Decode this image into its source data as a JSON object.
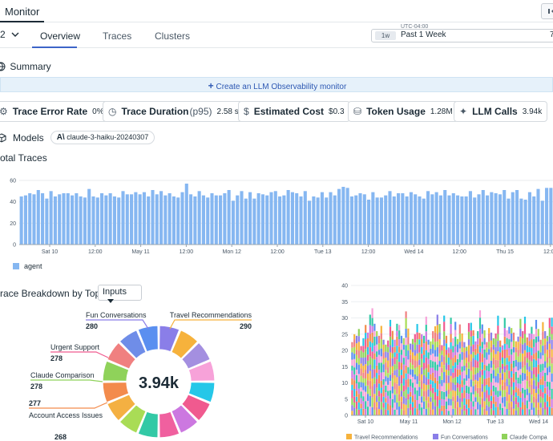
{
  "header": {
    "title": "Monitor"
  },
  "tabs": {
    "selector": "2",
    "items": [
      "Overview",
      "Traces",
      "Clusters"
    ]
  },
  "time": {
    "timezone": "UTC-04:00",
    "badge": "1w",
    "range": "Past 1 Week",
    "edge": "7"
  },
  "summary": {
    "title": "Summary",
    "create_monitor": "Create an LLM Observability monitor"
  },
  "stats": [
    {
      "label": "Trace Error Rate",
      "value": "0%",
      "icon": "error-icon"
    },
    {
      "label": "Trace Duration",
      "sub": "(p95)",
      "value": "2.58 s",
      "icon": "clock-icon"
    },
    {
      "label": "Estimated Cost",
      "value": "$0.3",
      "icon": "dollar-icon"
    },
    {
      "label": "Token Usage",
      "value": "1.28M",
      "icon": "database-icon"
    },
    {
      "label": "LLM Calls",
      "value": "3.94k",
      "icon": "sparkle-icon"
    }
  ],
  "models": {
    "label": "Models",
    "chip": "claude-3-haiku-20240307"
  },
  "total_traces": {
    "title": "otal Traces",
    "legend": "agent"
  },
  "breakdown": {
    "title": "race Breakdown by Topic",
    "select": "Inputs",
    "center": "3.94k"
  },
  "colors": {
    "bar": "#86b7f1",
    "accent": "#3c64c8",
    "link": "#2d58b3"
  },
  "chart_data": [
    {
      "type": "bar",
      "title": "",
      "ylim": [
        0,
        60
      ],
      "yticks": [
        0,
        20,
        40,
        60
      ],
      "xtick_labels": [
        "Sat 10",
        "12:00",
        "May 11",
        "12:00",
        "Mon 12",
        "12:00",
        "Tue 13",
        "12:00",
        "Wed 14",
        "12:00",
        "Thu 15",
        "12:00"
      ],
      "series": [
        {
          "name": "agent",
          "values": [
            45,
            46,
            48,
            47,
            51,
            48,
            43,
            50,
            45,
            47,
            48,
            48,
            46,
            48,
            45,
            44,
            52,
            45,
            44,
            48,
            46,
            48,
            45,
            44,
            50,
            47,
            47,
            49,
            47,
            49,
            45,
            51,
            47,
            50,
            46,
            48,
            45,
            44,
            49,
            57,
            47,
            45,
            50,
            46,
            44,
            48,
            46,
            46,
            48,
            51,
            41,
            46,
            50,
            43,
            49,
            43,
            48,
            47,
            46,
            49,
            50,
            45,
            46,
            51,
            49,
            48,
            45,
            50,
            41,
            45,
            44,
            49,
            44,
            49,
            46,
            52,
            54,
            53,
            45,
            46,
            48,
            47,
            42,
            49,
            44,
            44,
            46,
            50,
            45,
            48,
            48,
            45,
            49,
            47,
            45,
            43,
            50,
            47,
            49,
            46,
            51,
            46,
            48,
            46,
            45,
            45,
            50,
            44,
            47,
            51,
            46,
            49,
            48,
            47,
            51,
            43,
            49,
            51,
            43,
            42,
            49,
            45,
            52,
            41,
            53,
            53
          ]
        }
      ]
    },
    {
      "type": "pie",
      "title": "",
      "center_total": "3.94k",
      "categories": [
        "Fun Conversations",
        "Travel Recommendations",
        "Urgent Support",
        "Claude Comparison",
        "Account Access Issues",
        ""
      ],
      "values": [
        280,
        290,
        278,
        278,
        277,
        268
      ]
    },
    {
      "type": "bar",
      "title": "",
      "ylim": [
        0,
        40
      ],
      "yticks": [
        0,
        5,
        10,
        15,
        20,
        25,
        30,
        35,
        40
      ],
      "xtick_labels": [
        "Sat 10",
        "May 11",
        "Mon 12",
        "Tue 13",
        "Wed 14"
      ],
      "legend": [
        "Travel Recommendations",
        "Fun Conversations",
        "Claude Compa"
      ],
      "totals": [
        24,
        26,
        25,
        28,
        22,
        24,
        29,
        26,
        31,
        34,
        30,
        27,
        25,
        29,
        24,
        22,
        24,
        30,
        26,
        24,
        30,
        29,
        25,
        25,
        33,
        27,
        23,
        24,
        25,
        29,
        27,
        26,
        25,
        32,
        24,
        23,
        27,
        28,
        31,
        29,
        23,
        32,
        25,
        22,
        31,
        24,
        30,
        24,
        28,
        26,
        24,
        22,
        29,
        30,
        27,
        23,
        27,
        33,
        28,
        27,
        24,
        28,
        26,
        25,
        26,
        31,
        24,
        22,
        30,
        27,
        29,
        28,
        26,
        24,
        25,
        30,
        27,
        31,
        24,
        26,
        29,
        26,
        30,
        28,
        24,
        29,
        27,
        25,
        30,
        31
      ]
    }
  ]
}
